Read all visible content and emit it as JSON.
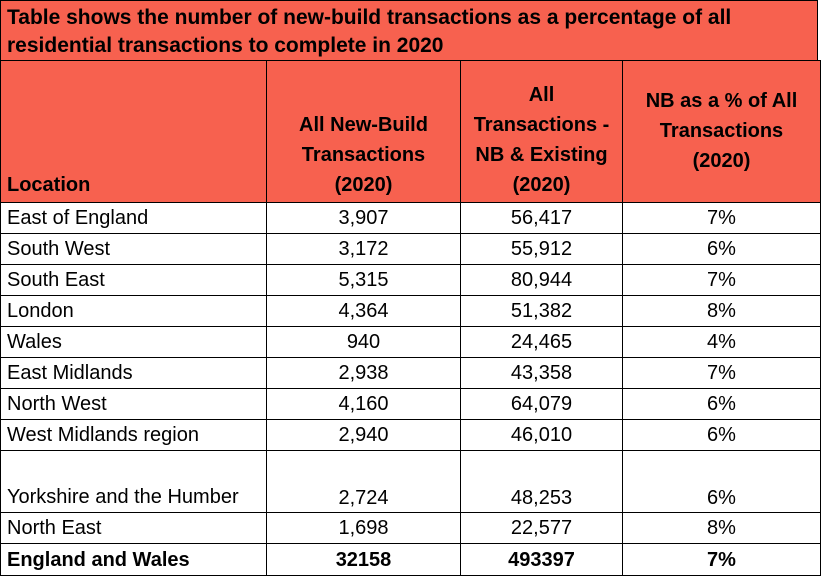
{
  "title": "Table shows the number of new-build transactions as a percentage of all residential transactions to complete in 2020",
  "columns": [
    "Location",
    "All New-Build Transactions (2020)",
    "All Transactions - NB & Existing (2020)",
    "NB as a % of All Transactions (2020)"
  ],
  "rows": [
    [
      "East of England",
      "3,907",
      "56,417",
      "7%"
    ],
    [
      "South West",
      "3,172",
      "55,912",
      "6%"
    ],
    [
      "South East",
      "5,315",
      "80,944",
      "7%"
    ],
    [
      "London",
      "4,364",
      "51,382",
      "8%"
    ],
    [
      "Wales",
      "940",
      "24,465",
      "4%"
    ],
    [
      "East Midlands",
      "2,938",
      "43,358",
      "7%"
    ],
    [
      "North West",
      "4,160",
      "64,079",
      "6%"
    ],
    [
      "West Midlands region",
      "2,940",
      "46,010",
      "6%"
    ],
    [
      "Yorkshire and the Humber",
      "2,724",
      "48,253",
      "6%"
    ],
    [
      "North East",
      "1,698",
      "22,577",
      "8%"
    ]
  ],
  "total": [
    "England and Wales",
    "32158",
    "493397",
    "7%"
  ],
  "colors": {
    "header_bg": "#f7614f",
    "border": "#000000"
  }
}
